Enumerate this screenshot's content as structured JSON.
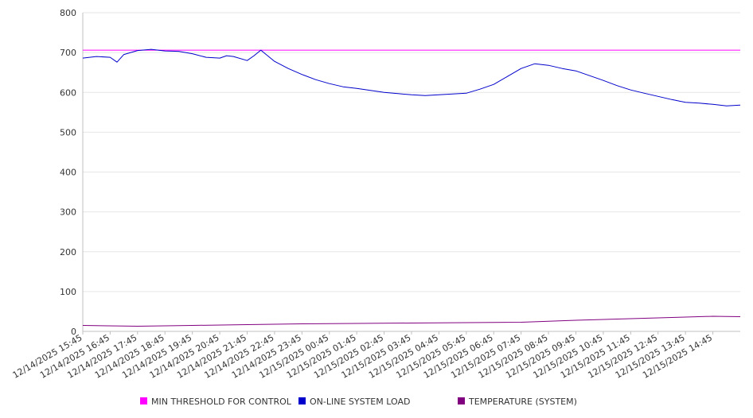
{
  "chart_data": {
    "type": "line",
    "title": "",
    "xlabel": "",
    "ylabel": "",
    "ylim": [
      0,
      800
    ],
    "yticks": [
      0,
      100,
      200,
      300,
      400,
      500,
      600,
      700,
      800
    ],
    "x_range": [
      "12/14/2025 15:45",
      "12/15/2025 15:45"
    ],
    "x_tick_labels": [
      "12/14/2025 15:45",
      "12/14/2025 16:45",
      "12/14/2025 17:45",
      "12/14/2025 18:45",
      "12/14/2025 19:45",
      "12/14/2025 20:45",
      "12/14/2025 21:45",
      "12/14/2025 22:45",
      "12/14/2025 23:45",
      "12/15/2025 00:45",
      "12/15/2025 01:45",
      "12/15/2025 02:45",
      "12/15/2025 03:45",
      "12/15/2025 04:45",
      "12/15/2025 05:45",
      "12/15/2025 06:45",
      "12/15/2025 07:45",
      "12/15/2025 08:45",
      "12/15/2025 09:45",
      "12/15/2025 10:45",
      "12/15/2025 11:45",
      "12/15/2025 12:45",
      "12/15/2025 13:45",
      "12/15/2025 14:45"
    ],
    "grid": "horizontal",
    "legend_position": "bottom",
    "series": [
      {
        "name": "MIN THRESHOLD FOR CONTROL",
        "color": "#ff00ff",
        "x": [
          "12/14/2025 15:45",
          "12/15/2025 15:45"
        ],
        "values": [
          706,
          706
        ]
      },
      {
        "name": "ON-LINE SYSTEM LOAD",
        "color": "#0000cc",
        "x": [
          "12/14/2025 15:45",
          "12/14/2025 16:15",
          "12/14/2025 16:45",
          "12/14/2025 17:00",
          "12/14/2025 17:15",
          "12/14/2025 17:45",
          "12/14/2025 18:15",
          "12/14/2025 18:45",
          "12/14/2025 19:15",
          "12/14/2025 19:45",
          "12/14/2025 20:15",
          "12/14/2025 20:45",
          "12/14/2025 21:00",
          "12/14/2025 21:15",
          "12/14/2025 21:45",
          "12/14/2025 22:00",
          "12/14/2025 22:15",
          "12/14/2025 22:45",
          "12/14/2025 23:15",
          "12/14/2025 23:45",
          "12/15/2025 00:15",
          "12/15/2025 00:45",
          "12/15/2025 01:15",
          "12/15/2025 01:45",
          "12/15/2025 02:15",
          "12/15/2025 02:45",
          "12/15/2025 03:15",
          "12/15/2025 03:45",
          "12/15/2025 04:15",
          "12/15/2025 04:45",
          "12/15/2025 05:15",
          "12/15/2025 05:45",
          "12/15/2025 06:15",
          "12/15/2025 06:45",
          "12/15/2025 07:15",
          "12/15/2025 07:45",
          "12/15/2025 08:15",
          "12/15/2025 08:45",
          "12/15/2025 09:15",
          "12/15/2025 09:45",
          "12/15/2025 10:15",
          "12/15/2025 10:45",
          "12/15/2025 11:15",
          "12/15/2025 11:45",
          "12/15/2025 12:15",
          "12/15/2025 12:45",
          "12/15/2025 13:15",
          "12/15/2025 13:45",
          "12/15/2025 14:15",
          "12/15/2025 14:45",
          "12/15/2025 15:15",
          "12/15/2025 15:45"
        ],
        "values": [
          686,
          690,
          688,
          676,
          695,
          705,
          708,
          704,
          703,
          697,
          688,
          686,
          692,
          690,
          680,
          692,
          706,
          678,
          660,
          645,
          632,
          622,
          614,
          610,
          605,
          600,
          597,
          594,
          592,
          594,
          596,
          598,
          608,
          620,
          640,
          660,
          672,
          668,
          660,
          654,
          642,
          630,
          617,
          606,
          598,
          590,
          582,
          575,
          573,
          570,
          566,
          568
        ]
      },
      {
        "name": "TEMPERATURE (SYSTEM)",
        "color": "#800080",
        "x": [
          "12/14/2025 15:45",
          "12/14/2025 17:45",
          "12/14/2025 19:45",
          "12/14/2025 21:45",
          "12/14/2025 23:45",
          "12/15/2025 01:45",
          "12/15/2025 03:45",
          "12/15/2025 05:45",
          "12/15/2025 07:45",
          "12/15/2025 09:45",
          "12/15/2025 11:45",
          "12/15/2025 13:45",
          "12/15/2025 14:45",
          "12/15/2025 15:45"
        ],
        "values": [
          15,
          13,
          15,
          17,
          19,
          20,
          21,
          22,
          23,
          28,
          32,
          36,
          38,
          37
        ]
      }
    ]
  }
}
